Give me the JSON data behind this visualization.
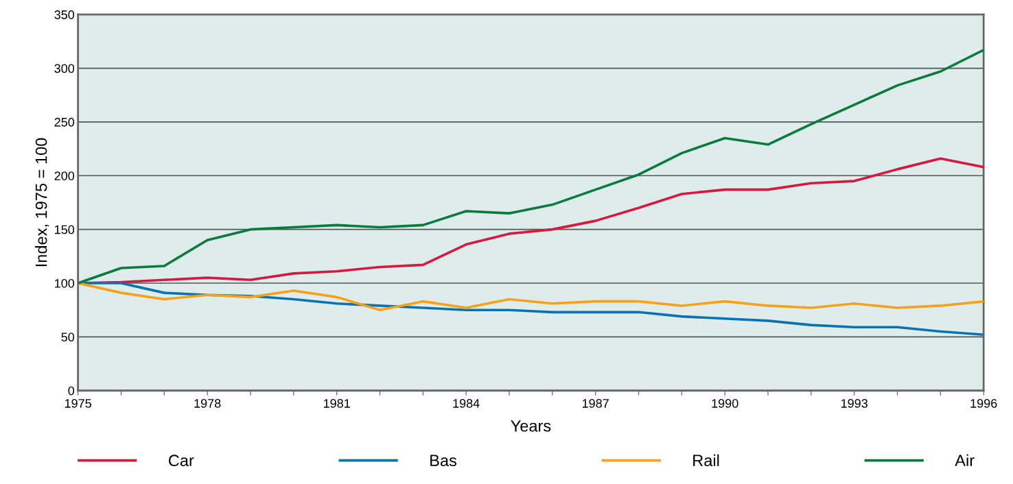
{
  "chart_data": {
    "type": "line",
    "xlabel": "Years",
    "ylabel": "Index, 1975 = 100",
    "x": [
      1975,
      1976,
      1977,
      1978,
      1979,
      1980,
      1981,
      1982,
      1983,
      1984,
      1985,
      1986,
      1987,
      1988,
      1989,
      1990,
      1991,
      1992,
      1993,
      1994,
      1995,
      1996
    ],
    "series": [
      {
        "name": "Car",
        "color": "#d7193f",
        "values": [
          100,
          101,
          103,
          105,
          103,
          109,
          111,
          115,
          117,
          136,
          146,
          150,
          158,
          170,
          183,
          187,
          187,
          193,
          195,
          206,
          216,
          208
        ]
      },
      {
        "name": "Bas",
        "color": "#0a72b0",
        "values": [
          100,
          100,
          91,
          89,
          88,
          85,
          81,
          79,
          77,
          75,
          75,
          73,
          73,
          73,
          69,
          67,
          65,
          61,
          59,
          59,
          55,
          52
        ]
      },
      {
        "name": "Rail",
        "color": "#f7a11a",
        "values": [
          100,
          91,
          85,
          89,
          87,
          93,
          87,
          75,
          83,
          77,
          85,
          81,
          83,
          83,
          79,
          83,
          79,
          77,
          81,
          77,
          79,
          83
        ]
      },
      {
        "name": "Air",
        "color": "#0b7a3e",
        "values": [
          100,
          114,
          116,
          140,
          150,
          152,
          154,
          152,
          154,
          167,
          165,
          173,
          187,
          201,
          221,
          235,
          229,
          248,
          266,
          284,
          297,
          317
        ]
      }
    ],
    "xlim": [
      1975,
      1996
    ],
    "xticks": [
      1975,
      {
        "value": 1976,
        "label": null
      },
      {
        "value": 1977,
        "label": null
      },
      1978,
      {
        "value": 1979,
        "label": null
      },
      {
        "value": 1980,
        "label": null
      },
      1981,
      {
        "value": 1982,
        "label": null
      },
      {
        "value": 1983,
        "label": null
      },
      1984,
      {
        "value": 1985,
        "label": null
      },
      {
        "value": 1986,
        "label": null
      },
      1987,
      {
        "value": 1988,
        "label": null
      },
      {
        "value": 1989,
        "label": null
      },
      1990,
      {
        "value": 1991,
        "label": null
      },
      {
        "value": 1992,
        "label": null
      },
      1993,
      {
        "value": 1994,
        "label": null
      },
      {
        "value": 1995,
        "label": null
      },
      1996
    ],
    "ylim": [
      0,
      350
    ],
    "yticks": [
      0,
      50,
      100,
      150,
      200,
      250,
      300,
      350
    ],
    "grid": "y",
    "legend": "bottom",
    "marker": "none",
    "line_style": "solid"
  }
}
